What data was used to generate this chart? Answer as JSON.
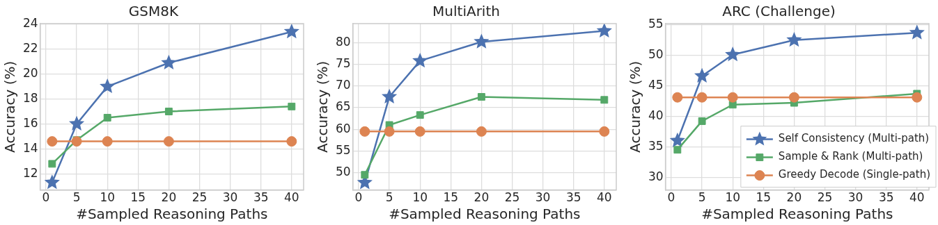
{
  "chart_data": [
    {
      "type": "line",
      "title": "GSM8K",
      "xlabel": "#Sampled Reasoning Paths",
      "ylabel": "Accuracy (%)",
      "x": [
        1,
        5,
        10,
        20,
        40
      ],
      "xlim": [
        -0.95,
        41.95
      ],
      "xticks": [
        0,
        5,
        10,
        15,
        20,
        25,
        30,
        35,
        40
      ],
      "ylim": [
        10.7,
        24.05
      ],
      "yticks": [
        12,
        14,
        16,
        18,
        20,
        22,
        24
      ],
      "grid": true,
      "legend": false,
      "series": [
        {
          "color": "#4c72b0",
          "marker": "star",
          "values": [
            11.3,
            16.0,
            19.0,
            20.9,
            23.4
          ]
        },
        {
          "color": "#55a868",
          "marker": "square",
          "values": [
            12.8,
            14.7,
            16.5,
            17.0,
            17.4
          ]
        },
        {
          "color": "#dd8452",
          "marker": "circle",
          "values": [
            14.6,
            14.6,
            14.6,
            14.6,
            14.6
          ]
        }
      ]
    },
    {
      "type": "line",
      "title": "MultiArith",
      "xlabel": "#Sampled Reasoning Paths",
      "ylabel": "Accuracy (%)",
      "x": [
        1,
        5,
        10,
        20,
        40
      ],
      "xlim": [
        -0.95,
        41.95
      ],
      "xticks": [
        0,
        5,
        10,
        15,
        20,
        25,
        30,
        35,
        40
      ],
      "ylim": [
        46.0,
        84.4
      ],
      "yticks": [
        50,
        55,
        60,
        65,
        70,
        75,
        80
      ],
      "grid": true,
      "legend": false,
      "series": [
        {
          "color": "#4c72b0",
          "marker": "star",
          "values": [
            47.7,
            67.5,
            75.8,
            80.2,
            82.7
          ]
        },
        {
          "color": "#55a868",
          "marker": "square",
          "values": [
            49.5,
            61.0,
            63.3,
            67.5,
            66.8
          ]
        },
        {
          "color": "#dd8452",
          "marker": "circle",
          "values": [
            59.5,
            59.5,
            59.5,
            59.5,
            59.5
          ]
        }
      ]
    },
    {
      "type": "line",
      "title": "ARC (Challenge)",
      "xlabel": "#Sampled Reasoning Paths",
      "ylabel": "Accuracy (%)",
      "x": [
        1,
        5,
        10,
        20,
        40
      ],
      "xlim": [
        -0.95,
        41.95
      ],
      "xticks": [
        0,
        5,
        10,
        15,
        20,
        25,
        30,
        35,
        40
      ],
      "ylim": [
        27.9,
        55.2
      ],
      "yticks": [
        30,
        35,
        40,
        45,
        50,
        55
      ],
      "grid": true,
      "legend": "bottom right",
      "series": [
        {
          "name": "Self Consistency (Multi-path)",
          "color": "#4c72b0",
          "marker": "star",
          "values": [
            36.0,
            46.6,
            50.1,
            52.5,
            53.7
          ]
        },
        {
          "name": "Sample & Rank (Multi-path)",
          "color": "#55a868",
          "marker": "square",
          "values": [
            34.5,
            39.2,
            41.9,
            42.2,
            43.7
          ]
        },
        {
          "name": "Greedy Decode (Single-path)",
          "color": "#dd8452",
          "marker": "circle",
          "values": [
            43.1,
            43.1,
            43.1,
            43.1,
            43.1
          ]
        }
      ]
    }
  ]
}
